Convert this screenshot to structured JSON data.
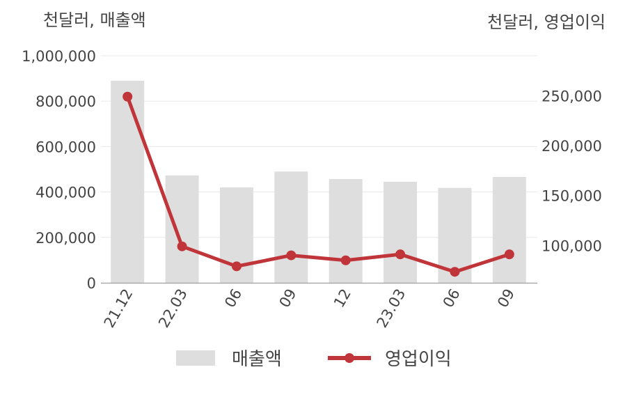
{
  "chart_data": {
    "type": "bar",
    "categories": [
      "21.12",
      "22.03",
      "06",
      "09",
      "12",
      "23.03",
      "06",
      "09"
    ],
    "series": [
      {
        "name": "매출액",
        "type": "bar",
        "axis": "left",
        "color": "#dedede",
        "values": [
          890000,
          473000,
          420000,
          490000,
          457000,
          445000,
          418000,
          466000
        ]
      },
      {
        "name": "영업이익",
        "type": "line",
        "axis": "right",
        "color": "#c0353a",
        "values": [
          249000,
          99000,
          79000,
          90000,
          85000,
          91000,
          73500,
          91000
        ]
      }
    ],
    "left_axis": {
      "unit_label": "천달러, 매출액",
      "ylim": [
        0,
        1000000
      ],
      "ticks": [
        0,
        200000,
        400000,
        600000,
        800000,
        1000000
      ],
      "tick_labels": [
        "0",
        "200,000",
        "400,000",
        "600,000",
        "800,000",
        "1,000,000"
      ]
    },
    "right_axis": {
      "unit_label": "천달러, 영업이익",
      "ylim": [
        62500,
        290000
      ],
      "ticks": [
        100000,
        150000,
        200000,
        250000
      ],
      "tick_labels": [
        "100,000",
        "150,000",
        "200,000",
        "250,000"
      ]
    },
    "grid": true,
    "legend_position": "bottom"
  }
}
